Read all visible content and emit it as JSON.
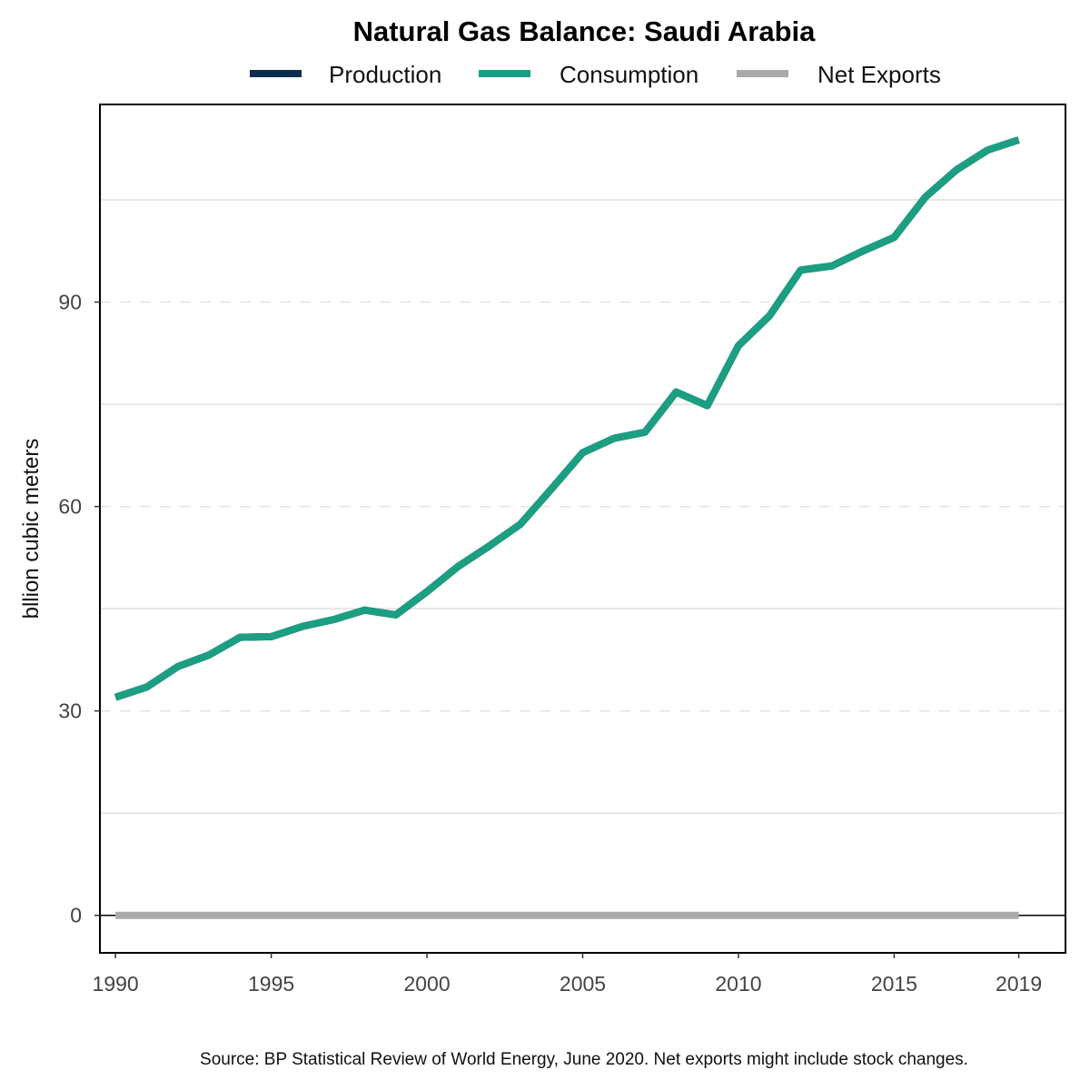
{
  "chart_data": {
    "type": "line",
    "title": "Natural Gas Balance: Saudi Arabia",
    "ylabel": "bllion cubic meters",
    "xlabel": "",
    "source": "Source: BP Statistical Review of World Energy, June 2020. Net exports might include stock changes.",
    "x": [
      1990,
      1991,
      1992,
      1993,
      1994,
      1995,
      1996,
      1997,
      1998,
      1999,
      2000,
      2001,
      2002,
      2003,
      2004,
      2005,
      2006,
      2007,
      2008,
      2009,
      2010,
      2011,
      2012,
      2013,
      2014,
      2015,
      2016,
      2017,
      2018,
      2019
    ],
    "x_ticks": [
      "1990",
      "1995",
      "2000",
      "2005",
      "2010",
      "2015",
      "2019"
    ],
    "y_ticks": [
      "0",
      "30",
      "60",
      "90"
    ],
    "xlim": [
      1989.5,
      2020.5
    ],
    "ylim": [
      -5.5,
      119
    ],
    "grid": "horizontal",
    "legend_position": "top",
    "series": [
      {
        "name": "Production",
        "color": "#0d2d4e",
        "values": [
          32.0,
          33.5,
          36.5,
          38.2,
          40.8,
          40.9,
          42.4,
          43.4,
          44.8,
          44.1,
          47.5,
          51.2,
          54.2,
          57.4,
          62.6,
          67.9,
          70.0,
          70.9,
          76.8,
          74.8,
          83.6,
          88.0,
          94.7,
          95.3,
          97.5,
          99.5,
          105.4,
          109.4,
          112.3,
          113.8
        ]
      },
      {
        "name": "Consumption",
        "color": "#1b9e82",
        "values": [
          32.0,
          33.5,
          36.5,
          38.2,
          40.8,
          40.9,
          42.4,
          43.4,
          44.8,
          44.1,
          47.5,
          51.2,
          54.2,
          57.4,
          62.6,
          67.9,
          70.0,
          70.9,
          76.8,
          74.8,
          83.6,
          88.0,
          94.7,
          95.3,
          97.5,
          99.5,
          105.4,
          109.4,
          112.3,
          113.8
        ]
      },
      {
        "name": "Net Exports",
        "color": "#aaaaaa",
        "values": [
          0,
          0,
          0,
          0,
          0,
          0,
          0,
          0,
          0,
          0,
          0,
          0,
          0,
          0,
          0,
          0,
          0,
          0,
          0,
          0,
          0,
          0,
          0,
          0,
          0,
          0,
          0,
          0,
          0,
          0
        ]
      }
    ]
  }
}
